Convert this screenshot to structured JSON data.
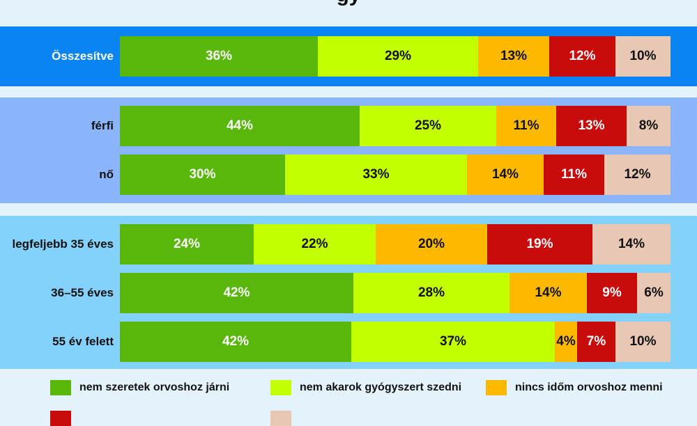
{
  "chart_data": {
    "type": "bar",
    "orientation": "horizontal",
    "stacked": true,
    "title": "",
    "categories": [
      "Összesítve",
      "férfi",
      "nő",
      "legfeljebb 35 éves",
      "36–55 éves",
      "55 év felett"
    ],
    "groups": [
      {
        "rows": [
          0
        ],
        "color": "#0a84f0"
      },
      {
        "rows": [
          1,
          2
        ],
        "color": "#8bb5fb"
      },
      {
        "rows": [
          3,
          4,
          5
        ],
        "color": "#84d1fb"
      }
    ],
    "series": [
      {
        "name": "nem szeretek orvoshoz járni",
        "color": "#58b70a",
        "text_color": "#ffffff",
        "values": [
          36,
          44,
          30,
          24,
          42,
          42
        ],
        "labels": [
          "36%",
          "44%",
          "30%",
          "24%",
          "42%",
          "42%"
        ]
      },
      {
        "name": "nem akarok gyógyszert szedni",
        "color": "#c3ff00",
        "text_color": "#111111",
        "values": [
          29,
          25,
          33,
          22,
          28,
          37
        ],
        "labels": [
          "29%",
          "25%",
          "33%",
          "22%",
          "28%",
          "37%"
        ]
      },
      {
        "name": "nincs időm orvoshoz menni",
        "color": "#fdb900",
        "text_color": "#111111",
        "values": [
          13,
          11,
          14,
          20,
          14,
          4
        ],
        "labels": [
          "13%",
          "11%",
          "14%",
          "20%",
          "14%",
          "4%"
        ]
      },
      {
        "name": "",
        "color": "#c80c0c",
        "text_color": "#ffffff",
        "values": [
          12,
          13,
          11,
          19,
          9,
          7
        ],
        "labels": [
          "12%",
          "13%",
          "11%",
          "19%",
          "9%",
          "7%"
        ]
      },
      {
        "name": "",
        "color": "#e8c8b4",
        "text_color": "#111111",
        "values": [
          10,
          8,
          12,
          14,
          6,
          10
        ],
        "labels": [
          "10%",
          "8%",
          "12%",
          "14%",
          "6%",
          "10%"
        ]
      }
    ],
    "xlim": [
      0,
      100
    ],
    "legend": "bottom",
    "grid": false
  }
}
